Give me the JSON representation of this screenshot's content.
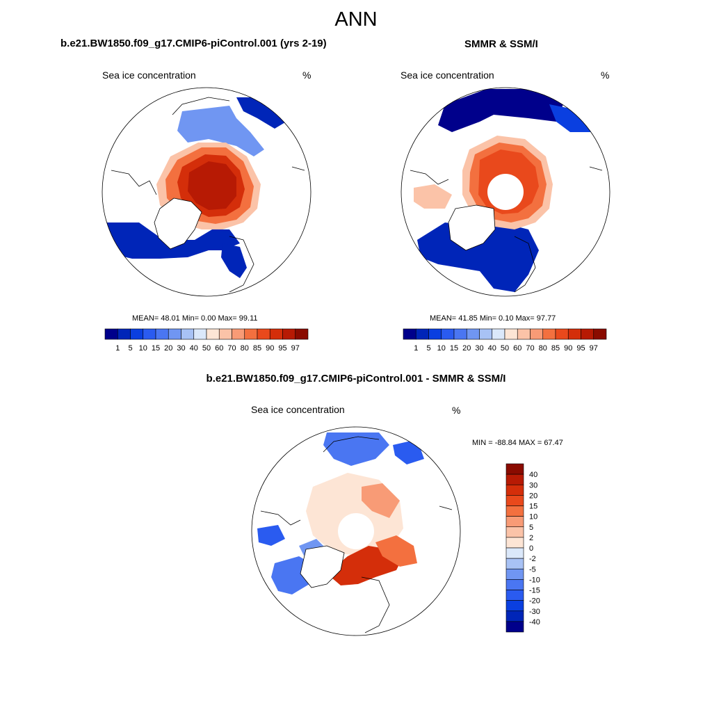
{
  "title": "ANN",
  "panels": {
    "model": {
      "title": "b.e21.BW1850.f09_g17.CMIP6-piControl.001 (yrs 2-19)",
      "subtitle": "Sea ice concentration",
      "units": "%",
      "stats": "MEAN=  48.01  Min=   0.00  Max=  99.11"
    },
    "obs": {
      "title": "SMMR & SSM/I",
      "subtitle": "Sea ice concentration",
      "units": "%",
      "stats": "MEAN=  41.85  Min=   0.10  Max=  97.77"
    },
    "diff": {
      "title": "b.e21.BW1850.f09_g17.CMIP6-piControl.001 - SMMR & SSM/I",
      "subtitle": "Sea ice concentration",
      "units": "%",
      "stats": "MIN = -88.84 MAX =  67.47"
    }
  },
  "chart_data": [
    {
      "type": "heatmap",
      "title": "b.e21.BW1850.f09_g17.CMIP6-piControl.001 (yrs 2-19)",
      "subtitle": "Sea ice concentration",
      "units": "%",
      "projection": "north polar stereographic",
      "mean": 48.01,
      "min": 0.0,
      "max": 99.11,
      "colorbar": {
        "levels": [
          "1",
          "5",
          "10",
          "15",
          "20",
          "30",
          "40",
          "50",
          "60",
          "70",
          "80",
          "85",
          "90",
          "95",
          "97"
        ],
        "colors": [
          "#00008b",
          "#0025b8",
          "#0a3fe0",
          "#2a5bf0",
          "#4a76f2",
          "#7096f2",
          "#a8c2f5",
          "#dbe8fa",
          "#fde5d5",
          "#fbc3a8",
          "#f89b76",
          "#f3703f",
          "#e9491c",
          "#d42e0a",
          "#b71a04",
          "#8a0b00"
        ]
      }
    },
    {
      "type": "heatmap",
      "title": "SMMR & SSM/I",
      "subtitle": "Sea ice concentration",
      "units": "%",
      "projection": "north polar stereographic",
      "mean": 41.85,
      "min": 0.1,
      "max": 97.77,
      "colorbar": {
        "levels": [
          "1",
          "5",
          "10",
          "15",
          "20",
          "30",
          "40",
          "50",
          "60",
          "70",
          "80",
          "85",
          "90",
          "95",
          "97"
        ],
        "colors": [
          "#00008b",
          "#0025b8",
          "#0a3fe0",
          "#2a5bf0",
          "#4a76f2",
          "#7096f2",
          "#a8c2f5",
          "#dbe8fa",
          "#fde5d5",
          "#fbc3a8",
          "#f89b76",
          "#f3703f",
          "#e9491c",
          "#d42e0a",
          "#b71a04",
          "#8a0b00"
        ]
      }
    },
    {
      "type": "heatmap",
      "title": "b.e21.BW1850.f09_g17.CMIP6-piControl.001 - SMMR & SSM/I",
      "subtitle": "Sea ice concentration",
      "units": "%",
      "projection": "north polar stereographic",
      "min": -88.84,
      "max": 67.47,
      "colorbar": {
        "orientation": "vertical",
        "levels": [
          "40",
          "30",
          "20",
          "15",
          "10",
          "5",
          "2",
          "0",
          "-2",
          "-5",
          "-10",
          "-15",
          "-20",
          "-30",
          "-40"
        ],
        "colors": [
          "#8a0b00",
          "#b71a04",
          "#d42e0a",
          "#e9491c",
          "#f3703f",
          "#f89b76",
          "#fbc3a8",
          "#fde5d5",
          "#dbe8fa",
          "#a8c2f5",
          "#7096f2",
          "#4a76f2",
          "#2a5bf0",
          "#0a3fe0",
          "#0025b8",
          "#00008b"
        ]
      }
    }
  ]
}
